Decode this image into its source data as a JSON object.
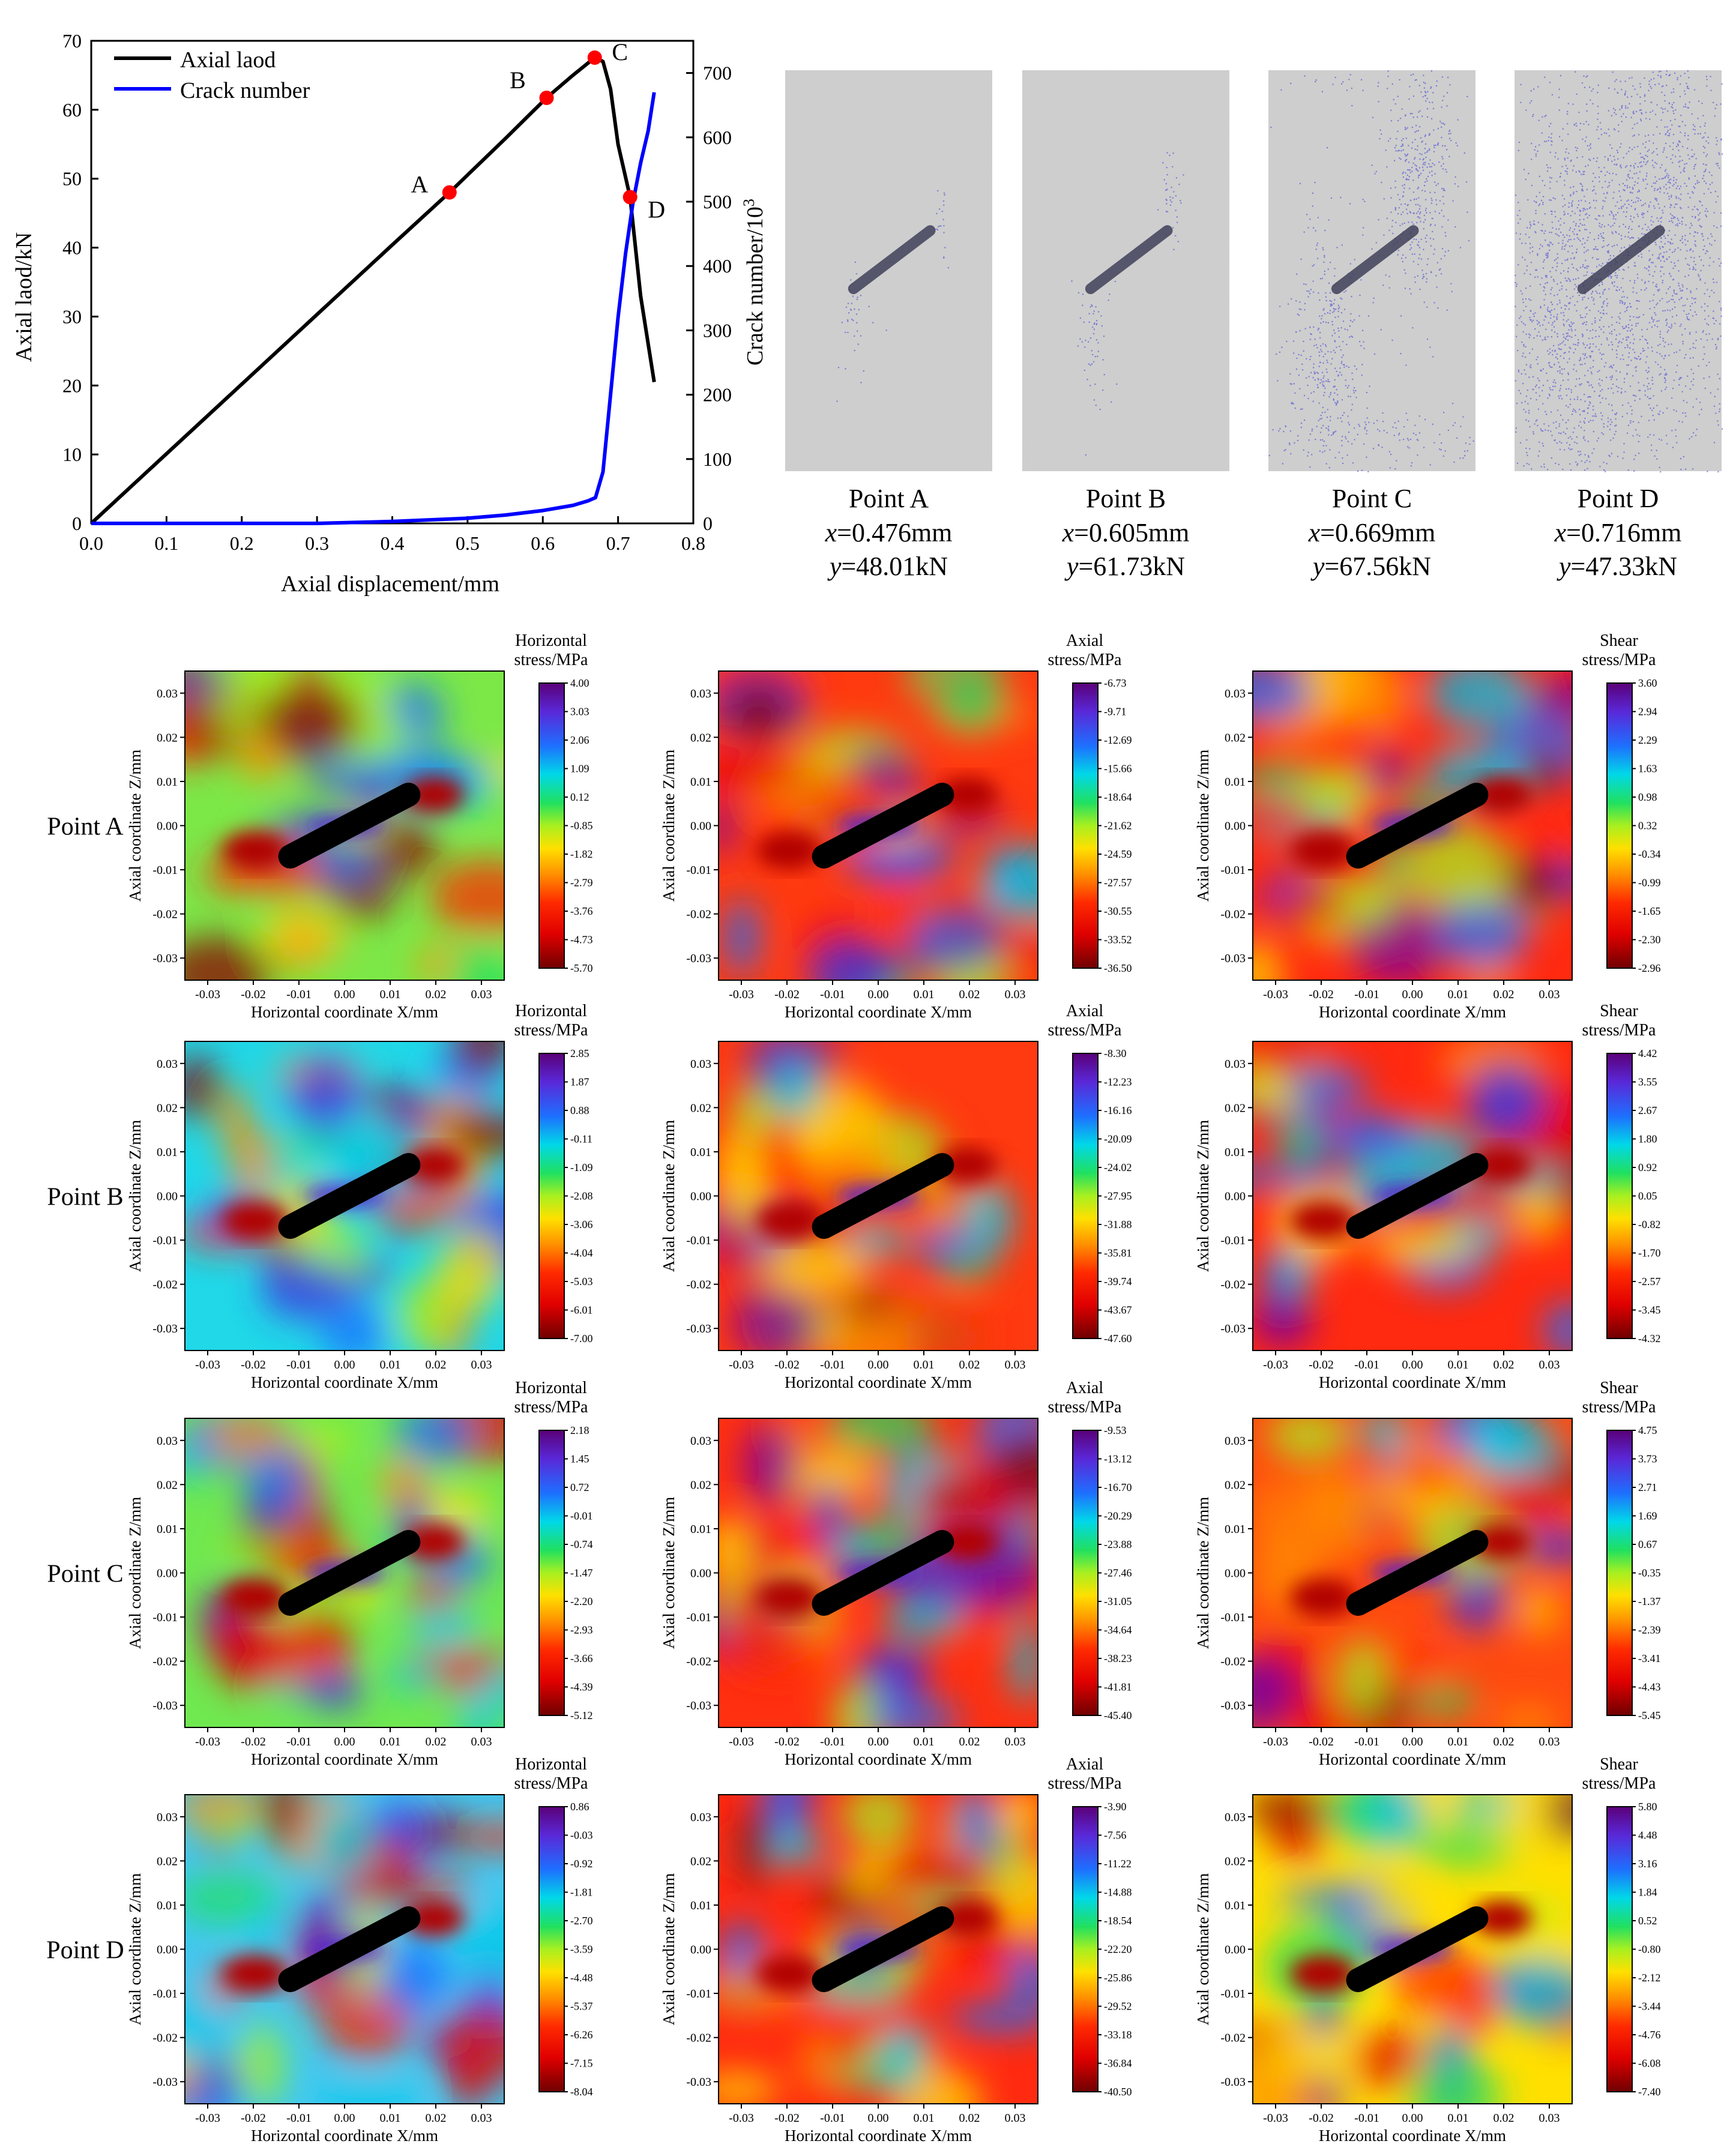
{
  "line_chart": {
    "xlabel": "Axial displacement/mm",
    "ylabel_left": "Axial laod/kN",
    "ylabel_right": "Crack number/10",
    "ylabel_right_sup": "3",
    "legend": [
      "Axial laod",
      "Crack number"
    ],
    "points": [
      {
        "label": "A"
      },
      {
        "label": "B"
      },
      {
        "label": "C"
      },
      {
        "label": "D"
      }
    ]
  },
  "crack_images": [
    {
      "name": "Point A",
      "x_text": "=0.476mm",
      "y_text": "=48.01kN"
    },
    {
      "name": "Point B",
      "x_text": "=0.605mm",
      "y_text": "=61.73kN"
    },
    {
      "name": "Point C",
      "x_text": "=0.669mm",
      "y_text": "=67.56kN"
    },
    {
      "name": "Point D",
      "x_text": "=0.716mm",
      "y_text": "=47.33kN"
    }
  ],
  "var_x": "x",
  "var_y": "y",
  "contour": {
    "xlabel": "Horizontal coordinate X/mm",
    "ylabel": "Axial coordinate Z/mm",
    "ticks": [
      "-0.03",
      "-0.02",
      "-0.01",
      "0.00",
      "0.01",
      "0.02",
      "0.03"
    ],
    "rows": [
      "Point A",
      "Point B",
      "Point C",
      "Point D"
    ],
    "columns": [
      {
        "title1": "Horizontal",
        "title2": "stress/MPa"
      },
      {
        "title1": "Axial",
        "title2": "stress/MPa"
      },
      {
        "title1": "Shear",
        "title2": "stress/MPa"
      }
    ],
    "colorbars": [
      [
        [
          "4.00",
          "3.03",
          "2.06",
          "1.09",
          "0.12",
          "-0.85",
          "-1.82",
          "-2.79",
          "-3.76",
          "-4.73",
          "-5.70"
        ],
        [
          "-6.73",
          "-9.71",
          "-12.69",
          "-15.66",
          "-18.64",
          "-21.62",
          "-24.59",
          "-27.57",
          "-30.55",
          "-33.52",
          "-36.50"
        ],
        [
          "3.60",
          "2.94",
          "2.29",
          "1.63",
          "0.98",
          "0.32",
          "-0.34",
          "-0.99",
          "-1.65",
          "-2.30",
          "-2.96"
        ]
      ],
      [
        [
          "2.85",
          "1.87",
          "0.88",
          "-0.11",
          "-1.09",
          "-2.08",
          "-3.06",
          "-4.04",
          "-5.03",
          "-6.01",
          "-7.00"
        ],
        [
          "-8.30",
          "-12.23",
          "-16.16",
          "-20.09",
          "-24.02",
          "-27.95",
          "-31.88",
          "-35.81",
          "-39.74",
          "-43.67",
          "-47.60"
        ],
        [
          "4.42",
          "3.55",
          "2.67",
          "1.80",
          "0.92",
          "0.05",
          "-0.82",
          "-1.70",
          "-2.57",
          "-3.45",
          "-4.32"
        ]
      ],
      [
        [
          "2.18",
          "1.45",
          "0.72",
          "-0.01",
          "-0.74",
          "-1.47",
          "-2.20",
          "-2.93",
          "-3.66",
          "-4.39",
          "-5.12"
        ],
        [
          "-9.53",
          "-13.12",
          "-16.70",
          "-20.29",
          "-23.88",
          "-27.46",
          "-31.05",
          "-34.64",
          "-38.23",
          "-41.81",
          "-45.40"
        ],
        [
          "4.75",
          "3.73",
          "2.71",
          "1.69",
          "0.67",
          "-0.35",
          "-1.37",
          "-2.39",
          "-3.41",
          "-4.43",
          "-5.45"
        ]
      ],
      [
        [
          "0.86",
          "-0.03",
          "-0.92",
          "-1.81",
          "-2.70",
          "-3.59",
          "-4.48",
          "-5.37",
          "-6.26",
          "-7.15",
          "-8.04"
        ],
        [
          "-3.90",
          "-7.56",
          "-11.22",
          "-14.88",
          "-18.54",
          "-22.20",
          "-25.86",
          "-29.52",
          "-33.18",
          "-36.84",
          "-40.50"
        ],
        [
          "5.80",
          "4.48",
          "3.16",
          "1.84",
          "0.52",
          "-0.80",
          "-2.12",
          "-3.44",
          "-4.76",
          "-6.08",
          "-7.40"
        ]
      ]
    ]
  },
  "chart_data": {
    "type": "line",
    "xlabel": "Axial displacement/mm",
    "xlim": [
      0.0,
      0.8
    ],
    "xticks": [
      0.0,
      0.1,
      0.2,
      0.3,
      0.4,
      0.5,
      0.6,
      0.7,
      0.8
    ],
    "ylim_left": [
      0,
      70
    ],
    "yticks_left": [
      0,
      10,
      20,
      30,
      40,
      50,
      60,
      70
    ],
    "ylim_right": [
      0,
      750
    ],
    "yticks_right": [
      0,
      100,
      200,
      300,
      400,
      500,
      600,
      700
    ],
    "legend_position": "top-left",
    "series": [
      {
        "name": "Axial laod",
        "axis": "left",
        "color": "#000000",
        "x": [
          0.0,
          0.1,
          0.2,
          0.3,
          0.4,
          0.476,
          0.55,
          0.605,
          0.64,
          0.669,
          0.68,
          0.69,
          0.7,
          0.716,
          0.73,
          0.748
        ],
        "y": [
          0.0,
          10.1,
          20.2,
          30.3,
          40.4,
          48.01,
          55.8,
          61.73,
          65.0,
          67.56,
          67.0,
          63.0,
          55.0,
          47.33,
          33.0,
          20.5
        ]
      },
      {
        "name": "Crack number",
        "axis": "right",
        "color": "#0000ff",
        "x": [
          0.0,
          0.3,
          0.4,
          0.5,
          0.55,
          0.6,
          0.64,
          0.66,
          0.67,
          0.68,
          0.69,
          0.7,
          0.71,
          0.72,
          0.73,
          0.74,
          0.748
        ],
        "y": [
          0,
          0,
          3,
          8,
          13,
          20,
          28,
          35,
          40,
          80,
          200,
          320,
          420,
          500,
          560,
          610,
          670
        ]
      }
    ],
    "points": [
      {
        "label": "A",
        "x": 0.476,
        "y": 48.01
      },
      {
        "label": "B",
        "x": 0.605,
        "y": 61.73
      },
      {
        "label": "C",
        "x": 0.669,
        "y": 67.56
      },
      {
        "label": "D",
        "x": 0.716,
        "y": 47.33
      }
    ]
  },
  "colors": {
    "load": "#000000",
    "crack": "#0000ff",
    "marker": "#ff0000",
    "crack_dot": "#3b3bd8",
    "specimen": "#cfcfcf"
  }
}
